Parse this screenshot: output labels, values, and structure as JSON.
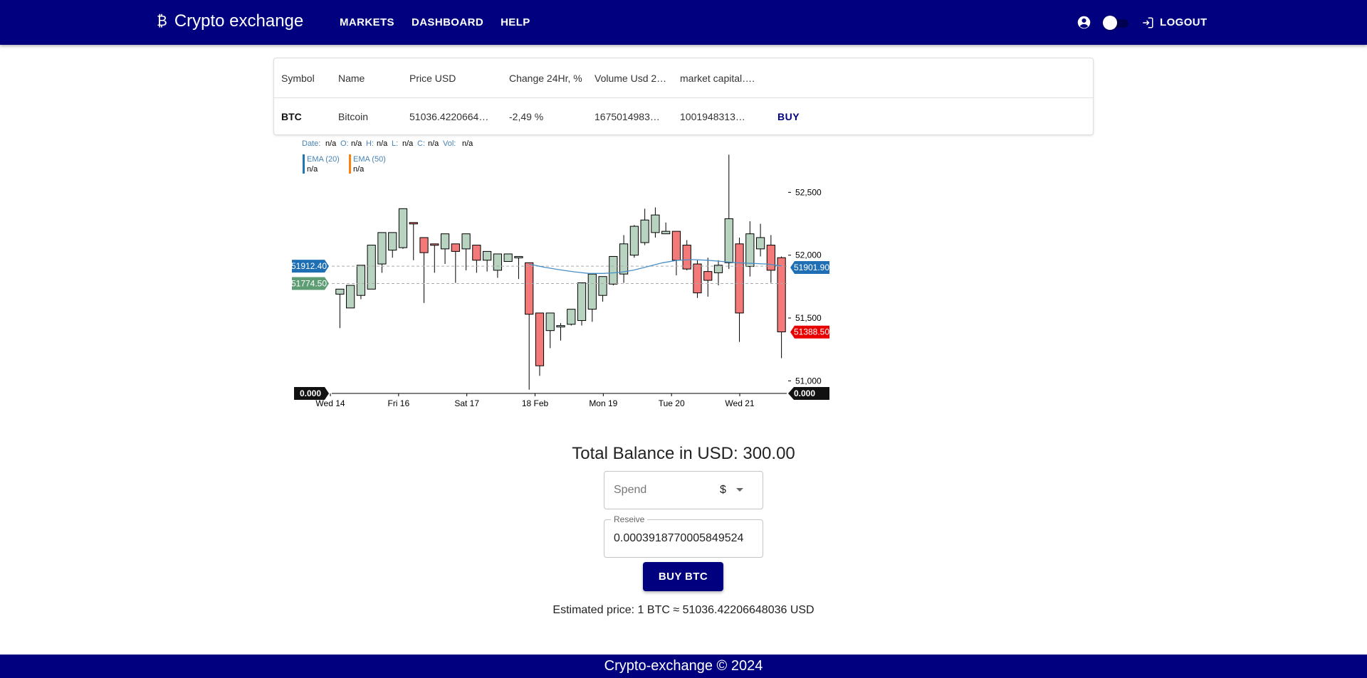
{
  "header": {
    "brand_icon": "₿",
    "brand": "Crypto exchange",
    "nav": [
      "MARKETS",
      "DASHBOARD",
      "HELP"
    ],
    "logout": "LOGOUT"
  },
  "table": {
    "headers": [
      "Symbol",
      "Name",
      "Price USD",
      "Change 24Hr, %",
      "Volume Usd 2…",
      "market capital…."
    ],
    "row": {
      "symbol": "BTC",
      "name": "Bitcoin",
      "price": "51036.4220664…",
      "change": "-2,49 %",
      "volume": "1675014983…",
      "market_cap": "1001948313…",
      "action": "BUY"
    }
  },
  "chart": {
    "ohlc_tooltip": {
      "date_label": "Date:",
      "o_label": "O:",
      "h_label": "H:",
      "l_label": "L:",
      "c_label": "C:",
      "vol_label": "Vol:",
      "value": "n/a"
    },
    "ema": [
      {
        "label": "EMA (20)",
        "value": "n/a",
        "color": "#1f77b4"
      },
      {
        "label": "EMA (50)",
        "value": "n/a",
        "color": "#ff7f0e"
      }
    ],
    "left_labels": {
      "top": "51912.40",
      "bottom": "51774.50",
      "volume": "0.000"
    },
    "right_labels": {
      "ema": "51901.90",
      "last": "51388.50",
      "volume": "0.000"
    },
    "colors": {
      "up": "#b8d4c0",
      "down": "#f47a7a",
      "ema_label": "#1f6fb4",
      "green_label": "#5e9d73",
      "last_label": "#e80000"
    }
  },
  "chart_data": {
    "type": "candlestick",
    "y_ticks": [
      "52,500",
      "52,000",
      "51,500",
      "51,000"
    ],
    "ylim": [
      50900,
      52870
    ],
    "x_ticks": [
      "Wed 14",
      "Fri 16",
      "Sat 17",
      "18 Feb",
      "Mon 19",
      "Tue 20",
      "Wed 21"
    ],
    "candles": [
      [
        51690,
        51730,
        51420,
        51560
      ],
      [
        51580,
        51760,
        51600,
        51670
      ],
      [
        51680,
        51920,
        51650,
        51800
      ],
      [
        51730,
        52080,
        51730,
        52000
      ],
      [
        51930,
        52180,
        51860,
        52100
      ],
      [
        52040,
        52180,
        51980,
        52110
      ],
      [
        52060,
        52370,
        52050,
        52300
      ],
      [
        52260,
        52250,
        51960,
        52040
      ],
      [
        52140,
        52020,
        51620,
        52020
      ],
      [
        52090,
        52080,
        51860,
        52030
      ],
      [
        52050,
        52170,
        51930,
        52100
      ],
      [
        52090,
        52030,
        51780,
        52030
      ],
      [
        52050,
        52170,
        51880,
        52110
      ],
      [
        52080,
        51960,
        51860,
        52060
      ],
      [
        51960,
        52030,
        51870,
        51970
      ],
      [
        51880,
        52010,
        51820,
        51940
      ],
      [
        51950,
        52010,
        51950,
        51950
      ],
      [
        51980,
        51990,
        51810,
        51840
      ],
      [
        51940,
        51530,
        50930,
        51910
      ],
      [
        51540,
        51120,
        51040,
        51540
      ],
      [
        51400,
        51540,
        51260,
        51400
      ],
      [
        51430,
        51440,
        51320,
        51460
      ],
      [
        51450,
        51570,
        51440,
        51530
      ],
      [
        51480,
        51780,
        51440,
        51730
      ],
      [
        51570,
        51850,
        51470,
        51670
      ],
      [
        51680,
        51830,
        51630,
        51720
      ],
      [
        51770,
        51990,
        51760,
        51970
      ],
      [
        51850,
        52090,
        51780,
        52160
      ],
      [
        52000,
        52230,
        51980,
        52240
      ],
      [
        52100,
        52280,
        52080,
        52370
      ],
      [
        52180,
        52320,
        52140,
        52380
      ],
      [
        52170,
        52190,
        52240,
        52260
      ],
      [
        52190,
        51960,
        51840,
        52190
      ],
      [
        52080,
        51890,
        51880,
        52120
      ],
      [
        51930,
        51700,
        51660,
        51960
      ],
      [
        51870,
        51800,
        51670,
        51980
      ],
      [
        51860,
        51920,
        51760,
        51960
      ],
      [
        51940,
        52290,
        51890,
        52800
      ],
      [
        52090,
        51540,
        51310,
        52140
      ],
      [
        51910,
        52170,
        51830,
        52270
      ],
      [
        52050,
        52140,
        51990,
        52250
      ],
      [
        52080,
        51880,
        51780,
        52160
      ],
      [
        51980,
        51390,
        51180,
        51990
      ]
    ]
  },
  "trade": {
    "balance": "Total Balance in USD: 300.00",
    "spend_placeholder": "Spend",
    "currency": "$",
    "receive_label": "Reseive",
    "receive_value": "0.0003918770005849524",
    "buy_button": "BUY BTC",
    "estimate": "Estimated price: 1 BTC ≈ 51036.42206648036 USD"
  },
  "footer": {
    "text": "Crypto-exchange © 2024"
  }
}
